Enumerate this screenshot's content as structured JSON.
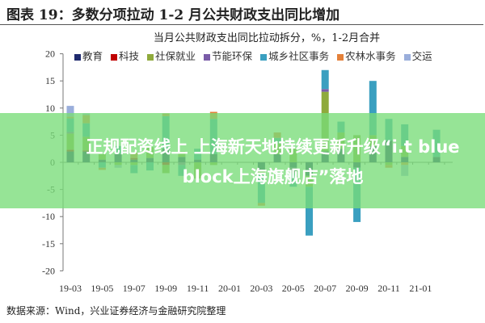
{
  "title": "图表 19：多数分项拉动 1-2 月公共财政支出同比增加",
  "footer": "数据来源：Wind，兴业证券经济与金融研究院整理",
  "banner": "正规配资线上  上海新天地持续更新升级“i.t blue block上海旗舰店”落地",
  "chart_data": {
    "type": "bar",
    "stacked": true,
    "title": "当月公共财政支出同比拉动拆分，%，1-2月合并",
    "ylim": [
      -20,
      20
    ],
    "yticks": [
      20,
      15,
      10,
      5,
      0,
      -5,
      -10,
      -15,
      -20
    ],
    "legend_position": "top",
    "categories": [
      "19-03",
      "19-04",
      "19-05",
      "19-06",
      "19-07",
      "19-08",
      "19-09",
      "19-10",
      "19-11",
      "19-12",
      "20-01",
      "20-02",
      "20-03",
      "20-04",
      "20-05",
      "20-06",
      "20-07",
      "20-08",
      "20-09",
      "20-10",
      "20-11",
      "20-12",
      "21-01",
      "21-02"
    ],
    "xtick_labels": [
      "19-03",
      "19-05",
      "19-07",
      "19-09",
      "19-11",
      "20-01",
      "20-03",
      "20-05",
      "20-07",
      "20-09",
      "20-11",
      "21-01"
    ],
    "series": [
      {
        "name": "教育",
        "color": "#1f2a6e",
        "values": [
          2,
          2,
          0.5,
          1.5,
          0.5,
          0.8,
          2.5,
          1,
          0.5,
          1.5,
          null,
          null,
          -1.5,
          1.5,
          -1,
          -2.5,
          2,
          2.5,
          -1,
          3,
          4,
          1,
          null,
          1
        ]
      },
      {
        "name": "科技",
        "color": "#c00000",
        "values": [
          0.3,
          0.2,
          0,
          0,
          0.3,
          0,
          -0.5,
          0,
          0,
          0,
          null,
          null,
          0,
          0,
          0,
          0,
          0,
          0,
          0,
          0,
          0,
          0,
          null,
          0
        ]
      },
      {
        "name": "社保就业",
        "color": "#8faa3c",
        "values": [
          3,
          2.5,
          1,
          -0.5,
          -0.5,
          2,
          -1.5,
          1,
          -3,
          -0.5,
          null,
          null,
          -0.5,
          2,
          2.5,
          -2,
          11,
          3,
          5,
          2,
          -0.5,
          2,
          null,
          0
        ]
      },
      {
        "name": "节能环保",
        "color": "#7a5ca8",
        "values": [
          0.3,
          0,
          0,
          0,
          0,
          0,
          0,
          -0.5,
          0,
          0,
          null,
          null,
          0,
          0,
          -1,
          0,
          0.5,
          0,
          0,
          0,
          0,
          0,
          null,
          0
        ]
      },
      {
        "name": "城乡社区事务",
        "color": "#3a9fc0",
        "values": [
          2.5,
          2.5,
          -1,
          1.5,
          -1.5,
          -1.5,
          6,
          -2,
          2,
          6.5,
          null,
          null,
          -5.5,
          1,
          -2.5,
          -9,
          3.5,
          2,
          -10,
          10,
          4,
          4,
          null,
          5
        ]
      },
      {
        "name": "农林水事务",
        "color": "#e4813a",
        "values": [
          0.3,
          1.5,
          -0.4,
          0,
          1,
          0,
          0.5,
          0,
          0,
          1.3,
          null,
          null,
          -0.5,
          1,
          0,
          0,
          0,
          0,
          0,
          0,
          -0.5,
          -0.5,
          null,
          0
        ]
      },
      {
        "name": "交运",
        "color": "#9aaedb",
        "values": [
          2,
          0.3,
          0,
          -0.5,
          0,
          0,
          0,
          0,
          0,
          0,
          null,
          null,
          0,
          0,
          0,
          0,
          0,
          0,
          0,
          0,
          0,
          -2,
          null,
          0
        ]
      }
    ]
  }
}
